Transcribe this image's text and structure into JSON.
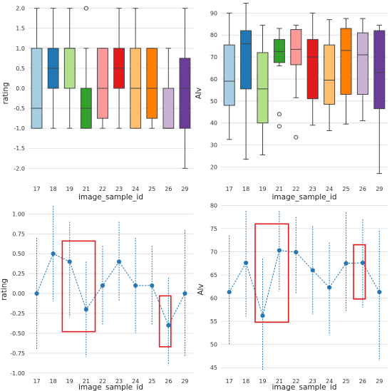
{
  "chart_data": [
    {
      "type": "box",
      "xlabel": "image_sample_id",
      "ylabel": "rating",
      "categories": [
        "17",
        "18",
        "19",
        "21",
        "22",
        "23",
        "24",
        "25",
        "26",
        "29"
      ],
      "ylim": [
        -2.35,
        2.1
      ],
      "yticks": [
        -2.0,
        -1.5,
        -1.0,
        -0.5,
        0.0,
        0.5,
        1.0,
        1.5,
        2.0
      ],
      "ytick_labels": [
        "-2.0",
        "-1.5",
        "-1.0",
        "-0.5",
        "0.0",
        "0.5",
        "1.0",
        "1.5",
        "2.0"
      ],
      "grid": "horizontal",
      "colors": [
        "#a6cee3",
        "#1f78b4",
        "#b2df8a",
        "#33a02c",
        "#fb9a99",
        "#e31a1c",
        "#fdbf6f",
        "#ff7f00",
        "#cab2d6",
        "#6a3d9a"
      ],
      "boxes": [
        {
          "category": "17",
          "whisker_low": -1.0,
          "q1": -1.0,
          "median": -0.5,
          "q3": 1.0,
          "whisker_high": 2.0,
          "outliers": []
        },
        {
          "category": "18",
          "whisker_low": -1.0,
          "q1": 0.0,
          "median": 0.5,
          "q3": 1.0,
          "whisker_high": 2.0,
          "outliers": []
        },
        {
          "category": "19",
          "whisker_low": -1.0,
          "q1": 0.0,
          "median": 1.0,
          "q3": 1.0,
          "whisker_high": 2.0,
          "outliers": []
        },
        {
          "category": "21",
          "whisker_low": -1.0,
          "q1": -1.0,
          "median": -0.5,
          "q3": 0.0,
          "whisker_high": 1.0,
          "outliers": [
            2.0
          ]
        },
        {
          "category": "22",
          "whisker_low": -1.0,
          "q1": -0.75,
          "median": 0.0,
          "q3": 1.0,
          "whisker_high": 1.0,
          "outliers": []
        },
        {
          "category": "23",
          "whisker_low": -1.0,
          "q1": 0.0,
          "median": 0.5,
          "q3": 1.0,
          "whisker_high": 2.0,
          "outliers": []
        },
        {
          "category": "24",
          "whisker_low": -1.0,
          "q1": -1.0,
          "median": 0.0,
          "q3": 1.0,
          "whisker_high": 2.0,
          "outliers": []
        },
        {
          "category": "25",
          "whisker_low": -1.0,
          "q1": -0.75,
          "median": 0.0,
          "q3": 1.0,
          "whisker_high": 1.0,
          "outliers": []
        },
        {
          "category": "26",
          "whisker_low": -1.0,
          "q1": -1.0,
          "median": -1.0,
          "q3": 0.0,
          "whisker_high": 1.0,
          "outliers": []
        },
        {
          "category": "29",
          "whisker_low": -2.0,
          "q1": -1.0,
          "median": 0.0,
          "q3": 0.75,
          "whisker_high": 2.0,
          "outliers": []
        }
      ]
    },
    {
      "type": "box",
      "xlabel": "image_sample_id",
      "ylabel": "Alv",
      "categories": [
        "17",
        "18",
        "19",
        "21",
        "22",
        "23",
        "24",
        "25",
        "26",
        "29"
      ],
      "ylim": [
        13,
        94
      ],
      "yticks": [
        20,
        30,
        40,
        50,
        60,
        70,
        80,
        90
      ],
      "ytick_labels": [
        "20",
        "30",
        "40",
        "50",
        "60",
        "70",
        "80",
        "90"
      ],
      "grid": "horizontal",
      "colors": [
        "#a6cee3",
        "#1f78b4",
        "#b2df8a",
        "#33a02c",
        "#fb9a99",
        "#e31a1c",
        "#fdbf6f",
        "#ff7f00",
        "#cab2d6",
        "#6a3d9a"
      ],
      "boxes": [
        {
          "category": "17",
          "whisker_low": 32.5,
          "q1": 48.0,
          "median": 59.0,
          "q3": 75.5,
          "whisker_high": 90.0,
          "outliers": []
        },
        {
          "category": "18",
          "whisker_low": 23.5,
          "q1": 55.5,
          "median": 76.0,
          "q3": 82.0,
          "whisker_high": 94.5,
          "outliers": []
        },
        {
          "category": "19",
          "whisker_low": 25.5,
          "q1": 40.0,
          "median": 55.5,
          "q3": 72.0,
          "whisker_high": 84.5,
          "outliers": []
        },
        {
          "category": "21",
          "whisker_low": 66.0,
          "q1": 67.5,
          "median": 72.5,
          "q3": 78.0,
          "whisker_high": 83.0,
          "outliers": [
            44.0,
            38.5
          ]
        },
        {
          "category": "22",
          "whisker_low": 51.5,
          "q1": 66.5,
          "median": 73.5,
          "q3": 82.5,
          "whisker_high": 84.5,
          "outliers": [
            33.5
          ]
        },
        {
          "category": "23",
          "whisker_low": 39.0,
          "q1": 51.0,
          "median": 70.0,
          "q3": 78.0,
          "whisker_high": 90.0,
          "outliers": []
        },
        {
          "category": "24",
          "whisker_low": 36.5,
          "q1": 48.5,
          "median": 59.5,
          "q3": 75.5,
          "whisker_high": 87.0,
          "outliers": []
        },
        {
          "category": "25",
          "whisker_low": 39.5,
          "q1": 53.0,
          "median": 73.0,
          "q3": 83.0,
          "whisker_high": 87.5,
          "outliers": []
        },
        {
          "category": "26",
          "whisker_low": 41.0,
          "q1": 53.0,
          "median": 71.0,
          "q3": 81.0,
          "whisker_high": 87.5,
          "outliers": []
        },
        {
          "category": "29",
          "whisker_low": 17.0,
          "q1": 46.5,
          "median": 63.0,
          "q3": 82.0,
          "whisker_high": 84.5,
          "outliers": []
        }
      ]
    },
    {
      "type": "point_errorbar",
      "xlabel": "image_sample_id",
      "ylabel": "rating",
      "categories": [
        "17",
        "18",
        "19",
        "21",
        "22",
        "23",
        "24",
        "25",
        "26",
        "29"
      ],
      "values": [
        0.0,
        0.5,
        0.4,
        -0.2,
        0.1,
        0.4,
        0.1,
        0.1,
        -0.4,
        0.0
      ],
      "err_low": [
        -0.7,
        -0.1,
        -0.3,
        -0.8,
        -0.4,
        -0.1,
        -0.5,
        -0.4,
        -0.9,
        -0.8
      ],
      "err_high": [
        0.7,
        1.1,
        0.9,
        0.4,
        0.6,
        0.9,
        0.7,
        0.6,
        0.2,
        0.8
      ],
      "ylim": [
        -1.02,
        1.12
      ],
      "yticks": [
        -1.0,
        -0.75,
        -0.5,
        -0.25,
        0.0,
        0.25,
        0.5,
        0.75,
        1.0
      ],
      "ytick_labels": [
        "-1.00",
        "-0.75",
        "-0.50",
        "-0.25",
        "0.00",
        "0.25",
        "0.50",
        "0.75",
        "1.00"
      ],
      "grid": "horizontal",
      "color": "#2878b5",
      "highlight_color": "#e31a1c",
      "highlights": [
        {
          "x_from": 18.55,
          "x_to": 21.55,
          "y_from": -0.48,
          "y_to": 0.66
        },
        {
          "x_from": 25.45,
          "x_to": 26.45,
          "y_from": -0.67,
          "y_to": -0.03
        }
      ]
    },
    {
      "type": "point_errorbar",
      "xlabel": "image_sample_id",
      "ylabel": "Alv",
      "categories": [
        "17",
        "18",
        "19",
        "21",
        "22",
        "23",
        "24",
        "25",
        "26",
        "29"
      ],
      "values": [
        61.3,
        67.6,
        56.2,
        70.3,
        69.9,
        66.0,
        62.3,
        67.5,
        67.6,
        61.3
      ],
      "err_low": [
        50.0,
        56.0,
        44.5,
        61.5,
        61.0,
        56.5,
        52.0,
        57.0,
        58.0,
        46.5
      ],
      "err_high": [
        73.5,
        78.8,
        68.5,
        78.8,
        77.5,
        75.5,
        72.0,
        78.5,
        77.0,
        74.5
      ],
      "ylim": [
        43.5,
        80.2
      ],
      "yticks": [
        45,
        50,
        55,
        60,
        65,
        70,
        75,
        80
      ],
      "ytick_labels": [
        "45",
        "50",
        "55",
        "60",
        "65",
        "70",
        "75",
        "80"
      ],
      "grid": "horizontal",
      "color": "#2878b5",
      "highlight_color": "#e31a1c",
      "highlights": [
        {
          "x_from": 18.55,
          "x_to": 21.55,
          "y_from": 54.8,
          "y_to": 76.0
        },
        {
          "x_from": 25.45,
          "x_to": 26.45,
          "y_from": 59.8,
          "y_to": 71.5
        }
      ]
    }
  ]
}
